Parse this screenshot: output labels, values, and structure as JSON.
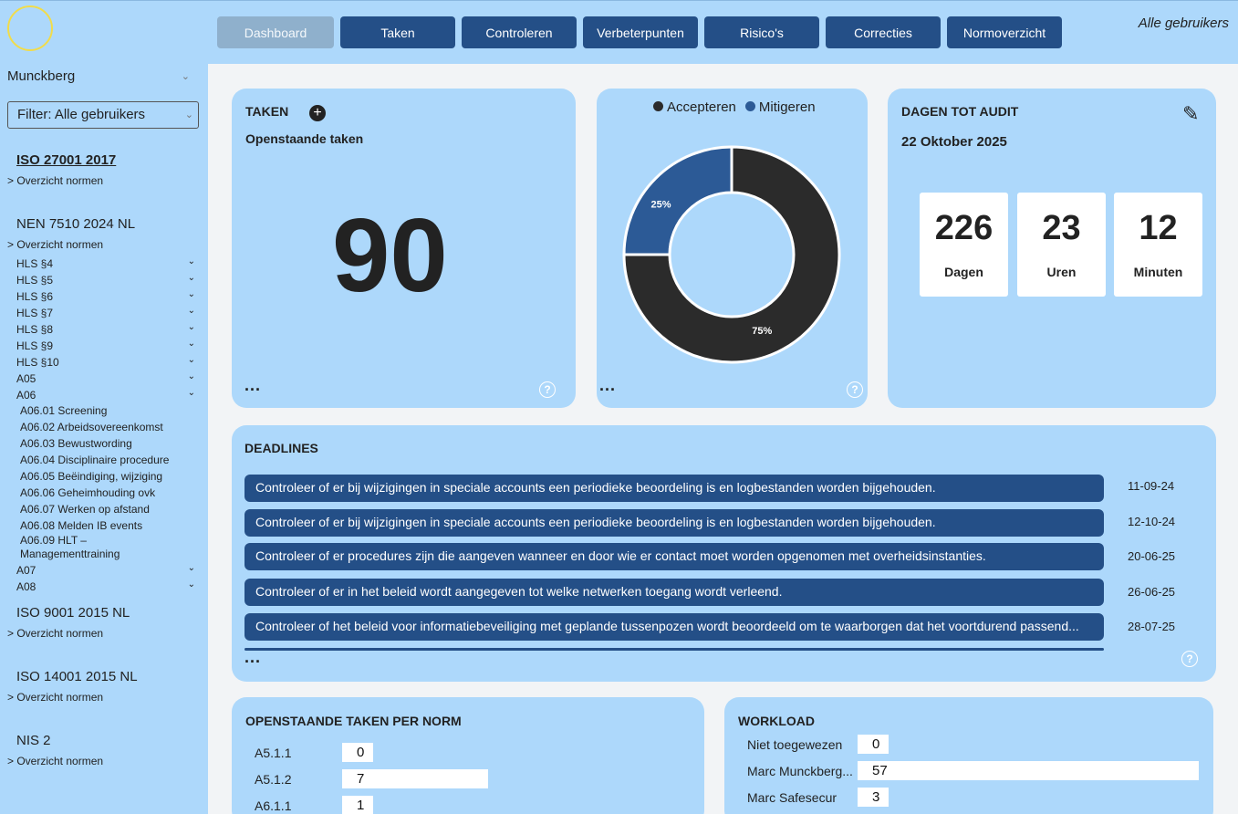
{
  "header": {
    "tabs": [
      "Dashboard",
      "Taken",
      "Controleren",
      "Verbeterpunten",
      "Risico's",
      "Correcties",
      "Normoverzicht"
    ],
    "all_users": "Alle gebruikers"
  },
  "sidebar": {
    "organization": "Munckberg",
    "filter": "Filter: Alle gebruikers",
    "norms": [
      {
        "title": "ISO 27001 2017",
        "link": "> Overzicht normen"
      },
      {
        "title": "NEN 7510 2024 NL",
        "link": "> Overzicht normen"
      },
      {
        "title": "ISO 9001 2015 NL",
        "link": "> Overzicht normen"
      },
      {
        "title": "ISO 14001 2015 NL",
        "link": "> Overzicht normen"
      },
      {
        "title": "NIS 2",
        "link": "> Overzicht normen"
      }
    ],
    "tree": [
      "HLS §4",
      "HLS §5",
      "HLS §6",
      "HLS §7",
      "HLS §8",
      "HLS §9",
      "HLS §10",
      "A05",
      "A06"
    ],
    "sub_items": [
      "A06.01 Screening",
      "A06.02 Arbeidsovereenkomst",
      "A06.03 Bewustwording",
      "A06.04 Disciplinaire procedure",
      "A06.05 Beëindiging, wijziging",
      "A06.06 Geheimhouding ovk",
      "A06.07 Werken op afstand",
      "A06.08 Melden IB events",
      "A06.09 HLT – Managementtraining"
    ],
    "tree_after": [
      "A07",
      "A08"
    ]
  },
  "taken": {
    "title": "TAKEN",
    "subtitle": "Openstaande taken",
    "count": "90",
    "more": "...",
    "help": "?"
  },
  "chart_data": {
    "type": "pie",
    "donut": true,
    "categories": [
      "Accepteren",
      "Mitigeren"
    ],
    "values": [
      75,
      25
    ],
    "labels": [
      "75%",
      "25%"
    ],
    "colors": [
      "#2b2b2b",
      "#2c5a96"
    ],
    "legend_position": "top"
  },
  "risk_card": {
    "more": "...",
    "help": "?"
  },
  "audit": {
    "title": "DAGEN TOT AUDIT",
    "date": "22 Oktober 2025",
    "counters": [
      {
        "value": "226",
        "label": "Dagen"
      },
      {
        "value": "23",
        "label": "Uren"
      },
      {
        "value": "12",
        "label": "Minuten"
      }
    ]
  },
  "deadlines": {
    "title": "DEADLINES",
    "rows": [
      {
        "text": "Controleer of er bij wijzigingen in speciale accounts een periodieke beoordeling is en logbestanden worden bijgehouden.",
        "date": "11-09-24"
      },
      {
        "text": "Controleer of er bij wijzigingen in speciale accounts een periodieke beoordeling is en logbestanden worden bijgehouden.",
        "date": "12-10-24"
      },
      {
        "text": "Controleer of er procedures zijn die aangeven wanneer en door wie er contact moet worden opgenomen met overheidsinstanties.",
        "date": "20-06-25"
      },
      {
        "text": "Controleer of er in het beleid wordt aangegeven tot welke netwerken toegang wordt verleend.",
        "date": "26-06-25"
      },
      {
        "text": "Controleer of het beleid voor informatiebeveiliging met geplande tussenpozen wordt beoordeeld om te waarborgen dat het voortdurend passend...",
        "date": "28-07-25"
      }
    ],
    "more": "...",
    "help": "?"
  },
  "open_per_norm": {
    "title": "OPENSTAANDE TAKEN PER NORM",
    "rows": [
      {
        "label": "A5.1.1",
        "value": 0
      },
      {
        "label": "A5.1.2",
        "value": 7
      },
      {
        "label": "A6.1.1",
        "value": 1
      }
    ]
  },
  "workload": {
    "title": "WORKLOAD",
    "rows": [
      {
        "label": "Niet toegewezen",
        "value": 0
      },
      {
        "label": "Marc Munckberg...",
        "value": 57
      },
      {
        "label": "Marc Safesecur",
        "value": 3
      }
    ]
  }
}
